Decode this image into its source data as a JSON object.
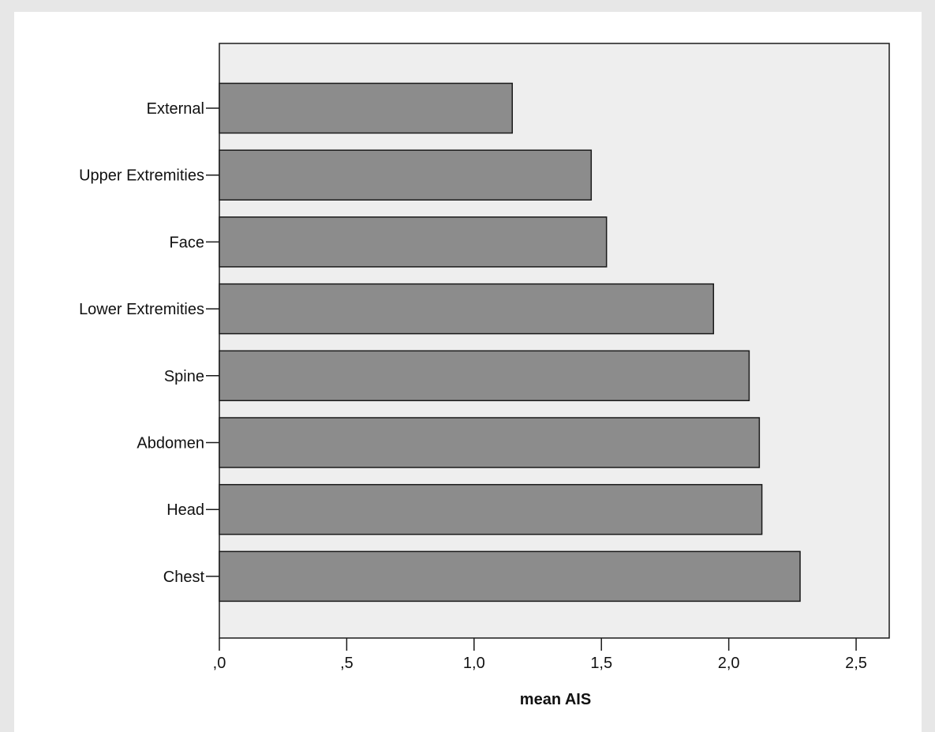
{
  "chart_data": {
    "type": "bar",
    "orientation": "horizontal",
    "categories": [
      "External",
      "Upper Extremities",
      "Face",
      "Lower Extremities",
      "Spine",
      "Abdomen",
      "Head",
      "Chest"
    ],
    "values": [
      1.15,
      1.46,
      1.52,
      1.94,
      2.08,
      2.12,
      2.13,
      2.28
    ],
    "title": "",
    "xlabel": "mean AIS",
    "ylabel": "",
    "xlim": [
      0,
      2.63
    ],
    "xticks": [
      0,
      0.5,
      1.0,
      1.5,
      2.0,
      2.5
    ],
    "xtick_labels": [
      ",0",
      ",5",
      "1,0",
      "1,5",
      "2,0",
      "2,5"
    ],
    "grid": false,
    "legend": "none",
    "colors": {
      "bar_fill": "#8c8c8c",
      "bar_stroke": "#1a1a1a",
      "plot_background": "#eeeeee",
      "page_background": "#e7e7e7",
      "frame_background": "#ffffff"
    }
  }
}
